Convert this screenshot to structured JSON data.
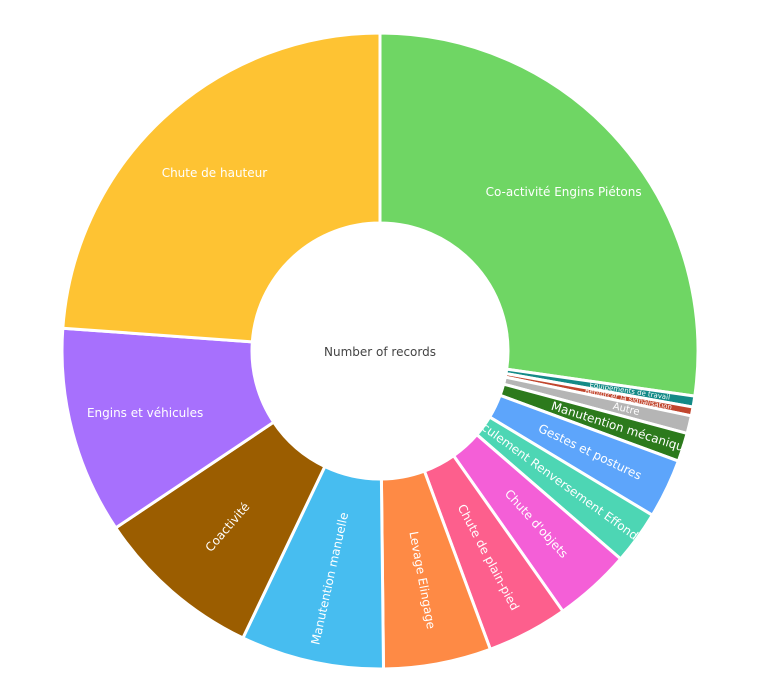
{
  "chart_data": {
    "type": "pie",
    "center_label": "Number of records",
    "slices": [
      {
        "label": "Co-activité Engins Piétons",
        "value": 27.2,
        "color": "#6fd664"
      },
      {
        "label": "Equipements de travail",
        "value": 0.55,
        "color": "#138a87"
      },
      {
        "label": "Renforcer la signalisation",
        "value": 0.45,
        "color": "#c1462e"
      },
      {
        "label": "Autre",
        "value": 0.9,
        "color": "#b5b5b5"
      },
      {
        "label": "Manutention mécanique",
        "value": 1.45,
        "color": "#2c7a1c"
      },
      {
        "label": "Gestes et postures",
        "value": 3.0,
        "color": "#5da5fb"
      },
      {
        "label": "Basculement Renversement Effondrement",
        "value": 2.7,
        "color": "#4dd6b4"
      },
      {
        "label": "Chute d'objets",
        "value": 3.9,
        "color": "#f45fd7"
      },
      {
        "label": "Chute de plain-pied",
        "value": 4.1,
        "color": "#fd5f8d"
      },
      {
        "label": "Levage Elingage",
        "value": 5.45,
        "color": "#fe8a45"
      },
      {
        "label": "Manutention manuelle",
        "value": 7.25,
        "color": "#47bdf0"
      },
      {
        "label": "Coactivité",
        "value": 8.5,
        "color": "#9b5d00"
      },
      {
        "label": "Engins et véhicules",
        "value": 10.5,
        "color": "#a770fd"
      },
      {
        "label": "Chute de hauteur",
        "value": 23.8,
        "color": "#fec333"
      }
    ]
  }
}
